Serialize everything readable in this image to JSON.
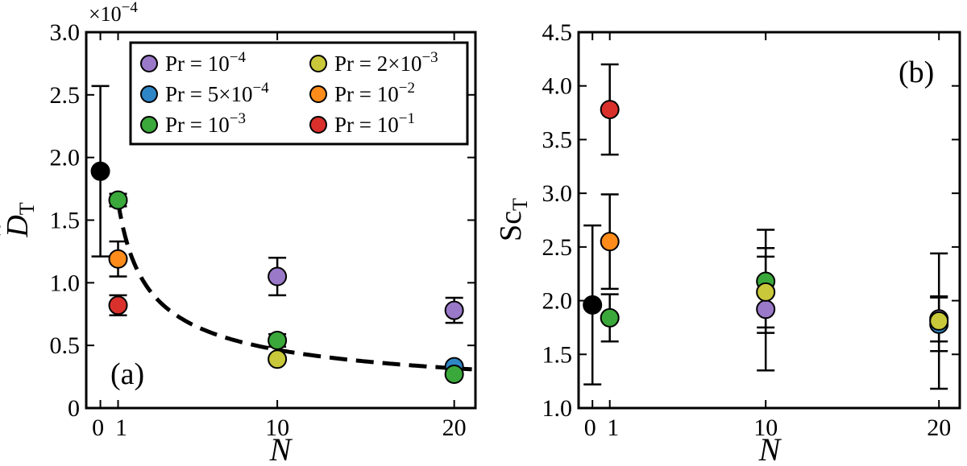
{
  "chart_data": [
    {
      "panel": "(a)",
      "type": "scatter",
      "xlabel": "N",
      "ylabel_main": "D",
      "ylabel_sub": "T",
      "y_multiplier": {
        "base": "×10",
        "exp": "−4"
      },
      "xlim": [
        -0.8,
        21.2
      ],
      "ylim": [
        0,
        3.0
      ],
      "xticks": [
        0,
        1,
        10,
        20
      ],
      "xtick_labels": [
        "0",
        "1",
        "10",
        "20"
      ],
      "yticks": [
        0,
        0.5,
        1.0,
        1.5,
        2.0,
        2.5,
        3.0
      ],
      "ytick_labels": [
        "0",
        "0.5",
        "1.0",
        "1.5",
        "2.0",
        "2.5",
        "3.0"
      ],
      "grid": false,
      "legend_position": "top-right",
      "legend": [
        {
          "label": "Pr = 10",
          "sup": "−4",
          "color": "#9a79c8"
        },
        {
          "label": "Pr = 5×10",
          "sup": "−4",
          "color": "#2f86c6"
        },
        {
          "label": "Pr = 10",
          "sup": "−3",
          "color": "#3aa83a"
        },
        {
          "label": "Pr = 2×10",
          "sup": "−3",
          "color": "#c8c83a"
        },
        {
          "label": "Pr = 10",
          "sup": "−2",
          "color": "#ff8c1a"
        },
        {
          "label": "Pr = 10",
          "sup": "−1",
          "color": "#d9302c"
        }
      ],
      "series": [
        {
          "color": "#000000",
          "points": [
            {
              "x": 0,
              "y": 1.89,
              "err": 0.68
            }
          ]
        },
        {
          "name": "Pr = 10^-4",
          "color": "#9a79c8",
          "points": [
            {
              "x": 10,
              "y": 1.05,
              "err": 0.15
            },
            {
              "x": 20,
              "y": 0.78,
              "err": 0.1
            }
          ]
        },
        {
          "name": "Pr = 5×10^-4",
          "color": "#2f86c6",
          "points": [
            {
              "x": 20,
              "y": 0.33,
              "err": 0
            }
          ]
        },
        {
          "name": "Pr = 10^-3",
          "color": "#3aa83a",
          "points": [
            {
              "x": 1,
              "y": 1.66,
              "err": 0.05
            },
            {
              "x": 10,
              "y": 0.54,
              "err": 0.05
            },
            {
              "x": 20,
              "y": 0.27,
              "err": 0
            }
          ]
        },
        {
          "name": "Pr = 2×10^-3",
          "color": "#c8c83a",
          "points": [
            {
              "x": 10,
              "y": 0.39,
              "err": 0
            }
          ]
        },
        {
          "name": "Pr = 10^-2",
          "color": "#ff8c1a",
          "points": [
            {
              "x": 1,
              "y": 1.19,
              "err": 0.14
            }
          ]
        },
        {
          "name": "Pr = 10^-1",
          "color": "#d9302c",
          "points": [
            {
              "x": 1,
              "y": 0.82,
              "err": 0.08
            }
          ]
        }
      ],
      "fit_curve": {
        "style": "dashed",
        "formula": "1.65 / N^0.55",
        "x_start": 1,
        "x_end": 21
      }
    },
    {
      "panel": "(b)",
      "type": "scatter",
      "xlabel": "N",
      "ylabel_main": "Sc",
      "ylabel_sub": "T",
      "xlim": [
        -0.8,
        21.2
      ],
      "ylim": [
        1.0,
        4.5
      ],
      "xticks": [
        0,
        1,
        10,
        20
      ],
      "xtick_labels": [
        "0",
        "1",
        "10",
        "20"
      ],
      "yticks": [
        1.0,
        1.5,
        2.0,
        2.5,
        3.0,
        3.5,
        4.0,
        4.5
      ],
      "ytick_labels": [
        "1.0",
        "1.5",
        "2.0",
        "2.5",
        "3.0",
        "3.5",
        "4.0",
        "4.5"
      ],
      "grid": false,
      "series": [
        {
          "color": "#000000",
          "points": [
            {
              "x": 0,
              "y": 1.96,
              "err": 0.74
            }
          ]
        },
        {
          "name": "Pr = 10^-4",
          "color": "#9a79c8",
          "points": [
            {
              "x": 10,
              "y": 1.92,
              "err": 0.57
            },
            {
              "x": 20,
              "y": 1.83,
              "err": 0.21
            }
          ]
        },
        {
          "name": "Pr = 5×10^-4",
          "color": "#2f86c6",
          "points": [
            {
              "x": 20,
              "y": 1.78,
              "err": 0.25
            }
          ]
        },
        {
          "name": "Pr = 10^-3",
          "color": "#3aa83a",
          "points": [
            {
              "x": 1,
              "y": 1.84,
              "err": 0.22
            },
            {
              "x": 10,
              "y": 2.18,
              "err": 0.48
            }
          ]
        },
        {
          "name": "Pr = 2×10^-3",
          "color": "#c8c83a",
          "points": [
            {
              "x": 10,
              "y": 2.08,
              "err": 0.33
            },
            {
              "x": 20,
              "y": 1.81,
              "err": 0.63
            }
          ]
        },
        {
          "name": "Pr = 10^-2",
          "color": "#ff8c1a",
          "points": [
            {
              "x": 1,
              "y": 2.55,
              "err": 0.44
            }
          ]
        },
        {
          "name": "Pr = 10^-1",
          "color": "#d9302c",
          "points": [
            {
              "x": 1,
              "y": 3.78,
              "err": 0.42
            }
          ]
        }
      ]
    }
  ]
}
